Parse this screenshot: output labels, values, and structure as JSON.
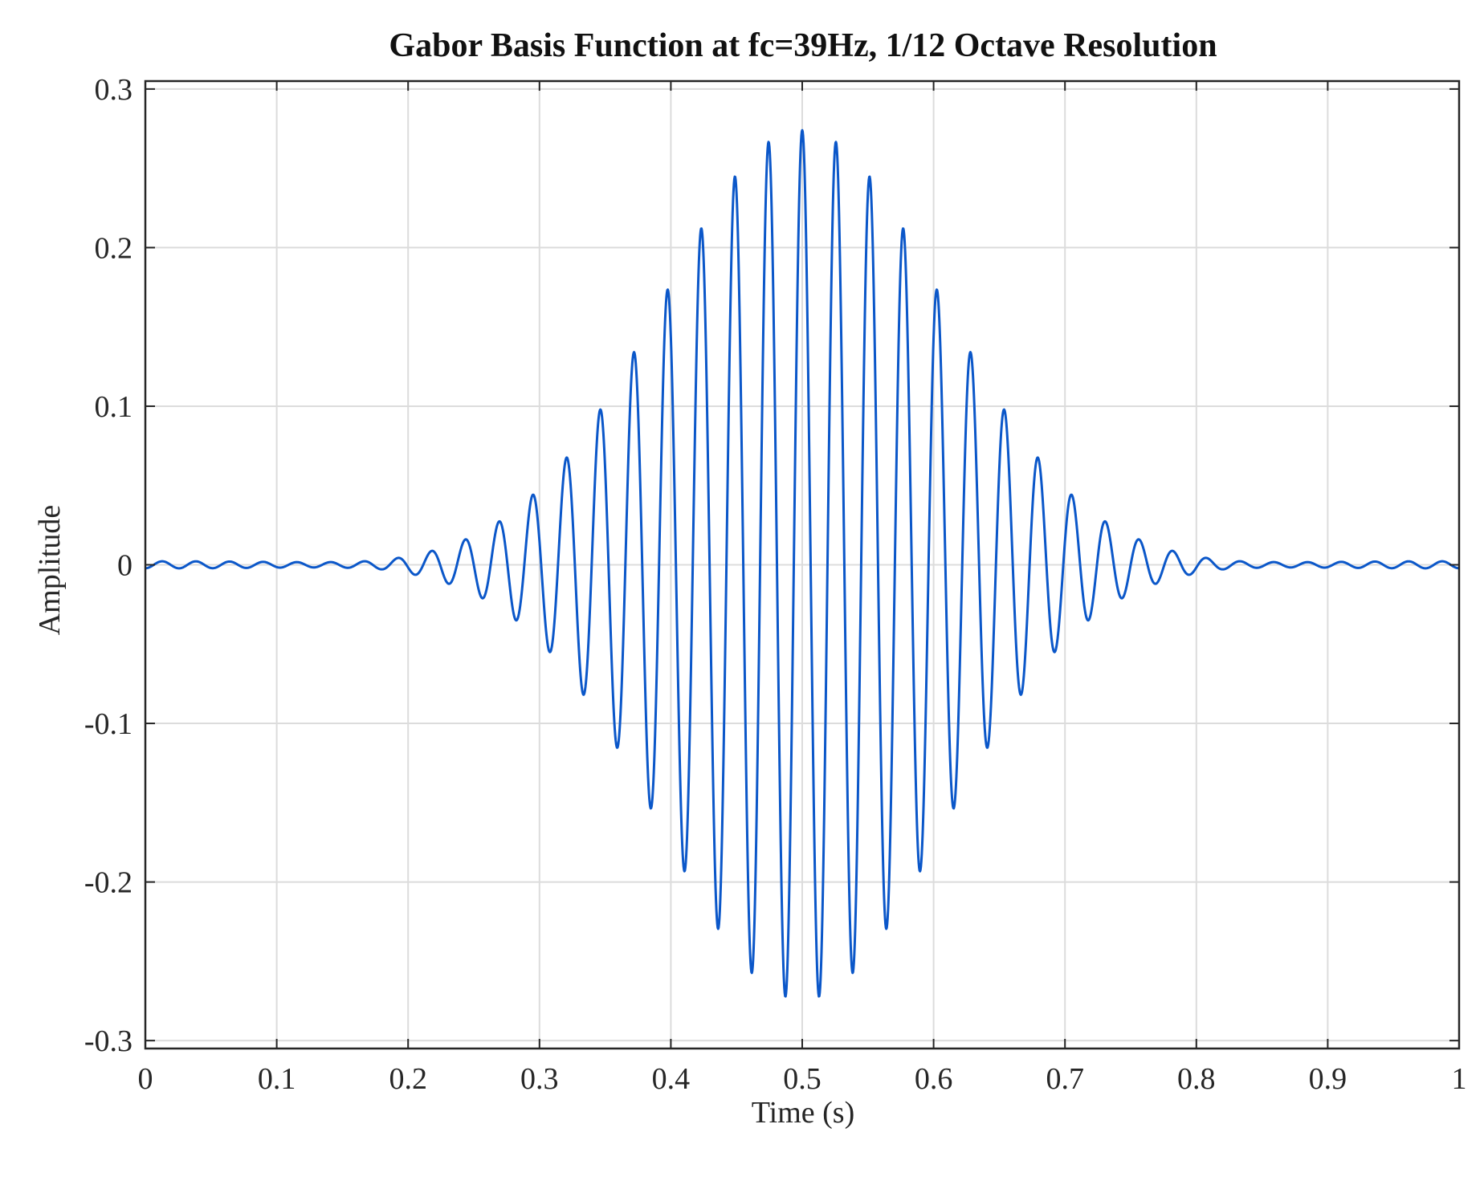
{
  "chart_data": {
    "type": "line",
    "title": "Gabor Basis Function at fc=39Hz, 1/12 Octave Resolution",
    "xlabel": "Time (s)",
    "ylabel": "Amplitude",
    "xlim": [
      0,
      1
    ],
    "ylim": [
      -0.305,
      0.305
    ],
    "xticks": [
      0,
      0.1,
      0.2,
      0.3,
      0.4,
      0.5,
      0.6,
      0.7,
      0.8,
      0.9,
      1
    ],
    "xtick_labels": [
      "0",
      "0.1",
      "0.2",
      "0.3",
      "0.4",
      "0.5",
      "0.6",
      "0.7",
      "0.8",
      "0.9",
      "1"
    ],
    "yticks": [
      -0.3,
      -0.2,
      -0.1,
      0,
      0.1,
      0.2,
      0.3
    ],
    "ytick_labels": [
      "-0.3",
      "-0.2",
      "-0.1",
      "0",
      "0.1",
      "0.2",
      "0.3"
    ],
    "grid": true,
    "series": [
      {
        "color": "#0b57c9",
        "model": "gaussian-windowed cosine with small ripple tails",
        "center_time": 0.5,
        "carrier_frequency_hz": 39,
        "peak_amplitude": 0.274,
        "gaussian_sigma_s": 0.106,
        "tail_ripple_amplitude": 0.0022,
        "peaks": [
          {
            "x": 0.5,
            "y": 0.274
          },
          {
            "x": 0.474,
            "y": 0.266
          },
          {
            "x": 0.526,
            "y": 0.266
          },
          {
            "x": 0.449,
            "y": 0.241
          },
          {
            "x": 0.551,
            "y": 0.241
          },
          {
            "x": 0.423,
            "y": 0.205
          },
          {
            "x": 0.577,
            "y": 0.205
          },
          {
            "x": 0.397,
            "y": 0.163
          },
          {
            "x": 0.603,
            "y": 0.163
          },
          {
            "x": 0.372,
            "y": 0.122
          },
          {
            "x": 0.628,
            "y": 0.122
          },
          {
            "x": 0.346,
            "y": 0.085
          },
          {
            "x": 0.654,
            "y": 0.085
          },
          {
            "x": 0.321,
            "y": 0.056
          },
          {
            "x": 0.679,
            "y": 0.056
          },
          {
            "x": 0.295,
            "y": 0.034
          },
          {
            "x": 0.705,
            "y": 0.034
          }
        ],
        "troughs": [
          {
            "x": 0.487,
            "y": -0.272
          },
          {
            "x": 0.513,
            "y": -0.272
          },
          {
            "x": 0.462,
            "y": -0.255
          },
          {
            "x": 0.538,
            "y": -0.255
          },
          {
            "x": 0.436,
            "y": -0.224
          },
          {
            "x": 0.564,
            "y": -0.224
          },
          {
            "x": 0.41,
            "y": -0.184
          },
          {
            "x": 0.59,
            "y": -0.184
          },
          {
            "x": 0.385,
            "y": -0.142
          },
          {
            "x": 0.615,
            "y": -0.142
          },
          {
            "x": 0.359,
            "y": -0.103
          },
          {
            "x": 0.641,
            "y": -0.103
          },
          {
            "x": 0.333,
            "y": -0.07
          },
          {
            "x": 0.667,
            "y": -0.07
          },
          {
            "x": 0.308,
            "y": -0.044
          },
          {
            "x": 0.692,
            "y": -0.044
          }
        ]
      }
    ]
  }
}
